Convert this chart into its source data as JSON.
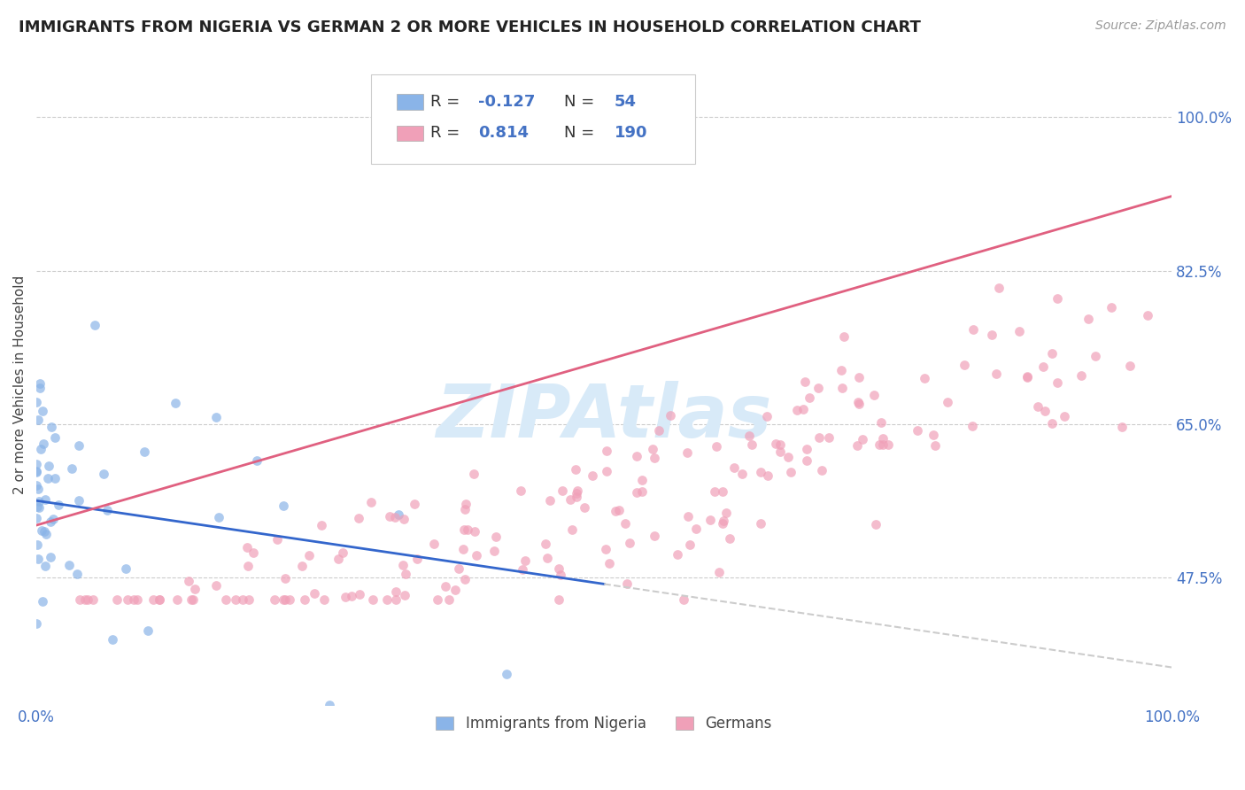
{
  "title": "IMMIGRANTS FROM NIGERIA VS GERMAN 2 OR MORE VEHICLES IN HOUSEHOLD CORRELATION CHART",
  "source": "Source: ZipAtlas.com",
  "ylabel": "2 or more Vehicles in Household",
  "xlim": [
    0.0,
    1.0
  ],
  "ylim": [
    0.33,
    1.06
  ],
  "x_ticks": [
    0.0,
    1.0
  ],
  "x_tick_labels": [
    "0.0%",
    "100.0%"
  ],
  "y_tick_values": [
    0.475,
    0.65,
    0.825,
    1.0
  ],
  "y_tick_labels": [
    "47.5%",
    "65.0%",
    "82.5%",
    "100.0%"
  ],
  "blue_color": "#8ab4e8",
  "pink_color": "#f0a0b8",
  "blue_line_color": "#3366cc",
  "pink_line_color": "#e06080",
  "legend_blue_label": "Immigrants from Nigeria",
  "legend_pink_label": "Germans",
  "r_blue": -0.127,
  "n_blue": 54,
  "r_pink": 0.814,
  "n_pink": 190,
  "background_color": "#ffffff",
  "dashed_color": "#cccccc",
  "annotation_color": "#4472c4",
  "watermark_color": "#d8eaf8",
  "title_color": "#222222",
  "source_color": "#999999",
  "label_color": "#444444"
}
